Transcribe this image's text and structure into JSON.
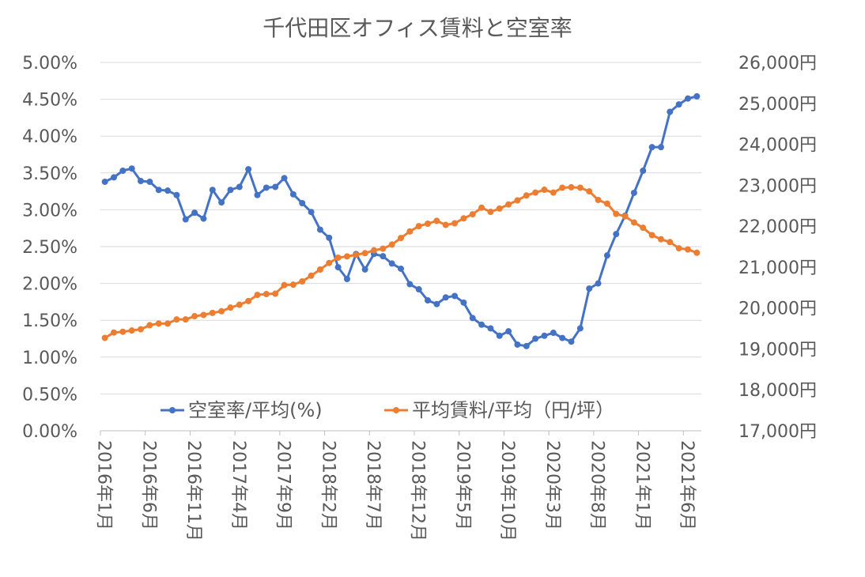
{
  "chart_data": {
    "type": "line",
    "title": "千代田区オフィス賃料と空室率",
    "x": [
      "2016年1月",
      "2016年2月",
      "2016年3月",
      "2016年4月",
      "2016年5月",
      "2016年6月",
      "2016年7月",
      "2016年8月",
      "2016年9月",
      "2016年10月",
      "2016年11月",
      "2016年12月",
      "2017年1月",
      "2017年2月",
      "2017年3月",
      "2017年4月",
      "2017年5月",
      "2017年6月",
      "2017年7月",
      "2017年8月",
      "2017年9月",
      "2017年10月",
      "2017年11月",
      "2017年12月",
      "2018年1月",
      "2018年2月",
      "2018年3月",
      "2018年4月",
      "2018年5月",
      "2018年6月",
      "2018年7月",
      "2018年8月",
      "2018年9月",
      "2018年10月",
      "2018年11月",
      "2018年12月",
      "2019年1月",
      "2019年2月",
      "2019年3月",
      "2019年4月",
      "2019年5月",
      "2019年6月",
      "2019年7月",
      "2019年8月",
      "2019年9月",
      "2019年10月",
      "2019年11月",
      "2019年12月",
      "2020年1月",
      "2020年2月",
      "2020年3月",
      "2020年4月",
      "2020年5月",
      "2020年6月",
      "2020年7月",
      "2020年8月",
      "2020年9月",
      "2020年10月",
      "2020年11月",
      "2020年12月",
      "2021年1月",
      "2021年2月",
      "2021年3月",
      "2021年4月",
      "2021年5月",
      "2021年6月",
      "2021年7月"
    ],
    "x_tick_labels": [
      "2016年1月",
      "2016年6月",
      "2016年11月",
      "2017年4月",
      "2017年9月",
      "2018年2月",
      "2018年7月",
      "2018年12月",
      "2019年5月",
      "2019年10月",
      "2020年3月",
      "2020年8月",
      "2021年1月",
      "2021年6月"
    ],
    "y_left_ticks": [
      "0.00%",
      "0.50%",
      "1.00%",
      "1.50%",
      "2.00%",
      "2.50%",
      "3.00%",
      "3.50%",
      "4.00%",
      "4.50%",
      "5.00%"
    ],
    "y_right_ticks": [
      "17,000円",
      "18,000円",
      "19,000円",
      "20,000円",
      "21,000円",
      "22,000円",
      "23,000円",
      "24,000円",
      "25,000円",
      "26,000円"
    ],
    "y_left_lim": [
      0,
      5
    ],
    "y_right_lim": [
      17000,
      26000
    ],
    "grid": true,
    "legend": "bottom-inside",
    "series": [
      {
        "name": "空室率/平均(%)",
        "axis": "left",
        "color": "#4472C4",
        "values": [
          3.38,
          3.44,
          3.53,
          3.56,
          3.39,
          3.38,
          3.27,
          3.26,
          3.2,
          2.87,
          2.96,
          2.88,
          3.27,
          3.1,
          3.27,
          3.31,
          3.55,
          3.2,
          3.3,
          3.31,
          3.43,
          3.21,
          3.09,
          2.97,
          2.73,
          2.62,
          2.22,
          2.06,
          2.4,
          2.19,
          2.4,
          2.37,
          2.27,
          2.2,
          1.99,
          1.92,
          1.77,
          1.72,
          1.81,
          1.83,
          1.74,
          1.53,
          1.44,
          1.39,
          1.29,
          1.35,
          1.17,
          1.15,
          1.25,
          1.29,
          1.33,
          1.26,
          1.21,
          1.39,
          1.93,
          2.0,
          2.38,
          2.67,
          2.92,
          3.23,
          3.53,
          3.85,
          3.85,
          4.33,
          4.43,
          4.51,
          4.54
        ]
      },
      {
        "name": "平均賃料/平均（円/坪）",
        "axis": "right",
        "color": "#ED7D31",
        "values": [
          19270,
          19400,
          19420,
          19450,
          19480,
          19580,
          19620,
          19620,
          19720,
          19720,
          19800,
          19830,
          19880,
          19920,
          20010,
          20080,
          20170,
          20320,
          20340,
          20350,
          20560,
          20570,
          20650,
          20790,
          20940,
          21100,
          21230,
          21260,
          21300,
          21340,
          21410,
          21450,
          21550,
          21710,
          21870,
          22000,
          22060,
          22130,
          22030,
          22070,
          22190,
          22290,
          22450,
          22350,
          22430,
          22530,
          22630,
          22750,
          22820,
          22890,
          22820,
          22940,
          22950,
          22940,
          22850,
          22640,
          22550,
          22300,
          22240,
          22090,
          21960,
          21780,
          21680,
          21610,
          21460,
          21430,
          21350
        ]
      }
    ]
  }
}
